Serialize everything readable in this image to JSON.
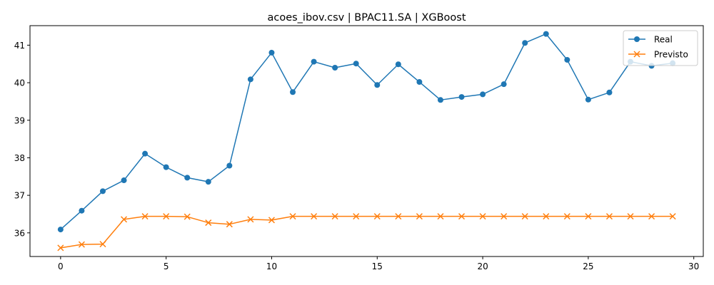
{
  "chart_data": {
    "type": "line",
    "title": "acoes_ibov.csv | BPAC11.SA | XGBoost",
    "xlabel": "",
    "ylabel": "",
    "x": [
      0,
      1,
      2,
      3,
      4,
      5,
      6,
      7,
      8,
      9,
      10,
      11,
      12,
      13,
      14,
      15,
      16,
      17,
      18,
      19,
      20,
      21,
      22,
      23,
      24,
      25,
      26,
      27,
      28,
      29
    ],
    "xlim": [
      -1.45,
      30.45
    ],
    "ylim": [
      35.37,
      41.52
    ],
    "xticks": [
      0,
      5,
      10,
      15,
      20,
      25,
      30
    ],
    "xtick_labels": [
      "0",
      "5",
      "10",
      "15",
      "20",
      "25",
      "30"
    ],
    "yticks": [
      36,
      37,
      38,
      39,
      40,
      41
    ],
    "ytick_labels": [
      "36",
      "37",
      "38",
      "39",
      "40",
      "41"
    ],
    "grid": false,
    "legend": "top-right",
    "series": [
      {
        "name": "Real",
        "color": "#1f77b4",
        "marker": "circle",
        "values": [
          36.09,
          36.59,
          37.11,
          37.4,
          38.11,
          37.75,
          37.47,
          37.36,
          37.79,
          40.09,
          40.8,
          39.75,
          40.56,
          40.4,
          40.51,
          39.94,
          40.49,
          40.02,
          39.54,
          39.62,
          39.69,
          39.96,
          41.06,
          41.3,
          40.61,
          39.55,
          39.74,
          40.56,
          40.45,
          40.52
        ]
      },
      {
        "name": "Previsto",
        "color": "#ff7f0e",
        "marker": "x",
        "values": [
          35.6,
          35.69,
          35.7,
          36.36,
          36.44,
          36.44,
          36.43,
          36.27,
          36.23,
          36.36,
          36.34,
          36.44,
          36.44,
          36.44,
          36.44,
          36.44,
          36.44,
          36.44,
          36.44,
          36.44,
          36.44,
          36.44,
          36.44,
          36.44,
          36.44,
          36.44,
          36.44,
          36.44,
          36.44,
          36.44
        ]
      }
    ]
  }
}
